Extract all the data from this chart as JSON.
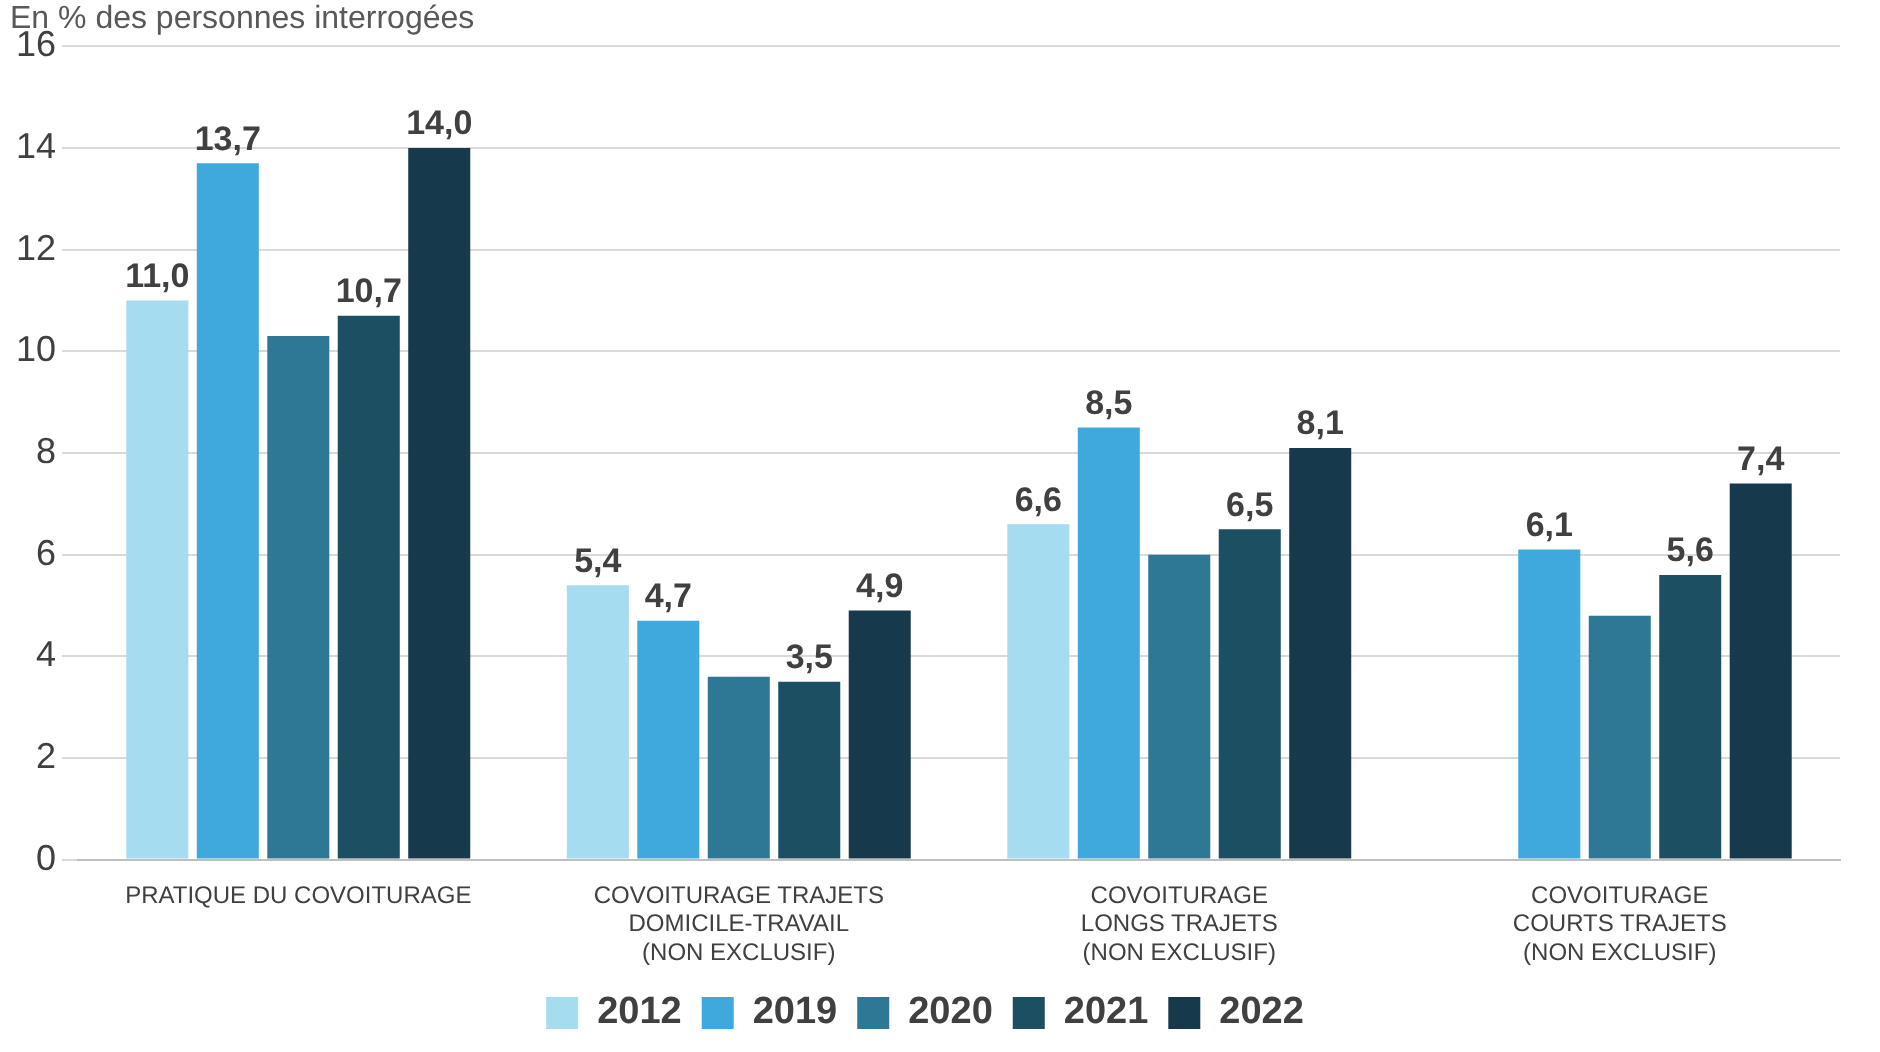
{
  "chart_data": {
    "type": "bar",
    "title": "En % des personnes interrogées",
    "categories": [
      "PRATIQUE DU COVOITURAGE",
      "COVOITURAGE TRAJETS\nDOMICILE-TRAVAIL\n(NON EXCLUSIF)",
      "COVOITURAGE\nLONGS TRAJETS\n(NON EXCLUSIF)",
      "COVOITURAGE\nCOURTS TRAJETS\n(NON EXCLUSIF)"
    ],
    "series": [
      {
        "name": "2012",
        "color": "#a6dcef",
        "values": [
          11.0,
          5.4,
          6.6,
          null
        ],
        "value_labels": [
          "11,0",
          "5,4",
          "6,6",
          null
        ]
      },
      {
        "name": "2019",
        "color": "#3fa9dd",
        "values": [
          13.7,
          4.7,
          8.5,
          6.1
        ],
        "value_labels": [
          "13,7",
          "4,7",
          "8,5",
          "6,1"
        ]
      },
      {
        "name": "2020",
        "color": "#2e7795",
        "values": [
          10.3,
          3.6,
          6.0,
          4.8
        ],
        "value_labels": [
          null,
          null,
          null,
          null
        ]
      },
      {
        "name": "2021",
        "color": "#1d4f63",
        "values": [
          10.7,
          3.5,
          6.5,
          5.6
        ],
        "value_labels": [
          "10,7",
          "3,5",
          "6,5",
          "5,6"
        ]
      },
      {
        "name": "2022",
        "color": "#163a4c",
        "values": [
          14.0,
          4.9,
          8.1,
          7.4
        ],
        "value_labels": [
          "14,0",
          "4,9",
          "8,1",
          "7,4"
        ]
      }
    ],
    "ylim": [
      0,
      16
    ],
    "yticks": [
      0,
      2,
      4,
      6,
      8,
      10,
      12,
      14,
      16
    ],
    "grid": "y",
    "legend": "bottom"
  }
}
